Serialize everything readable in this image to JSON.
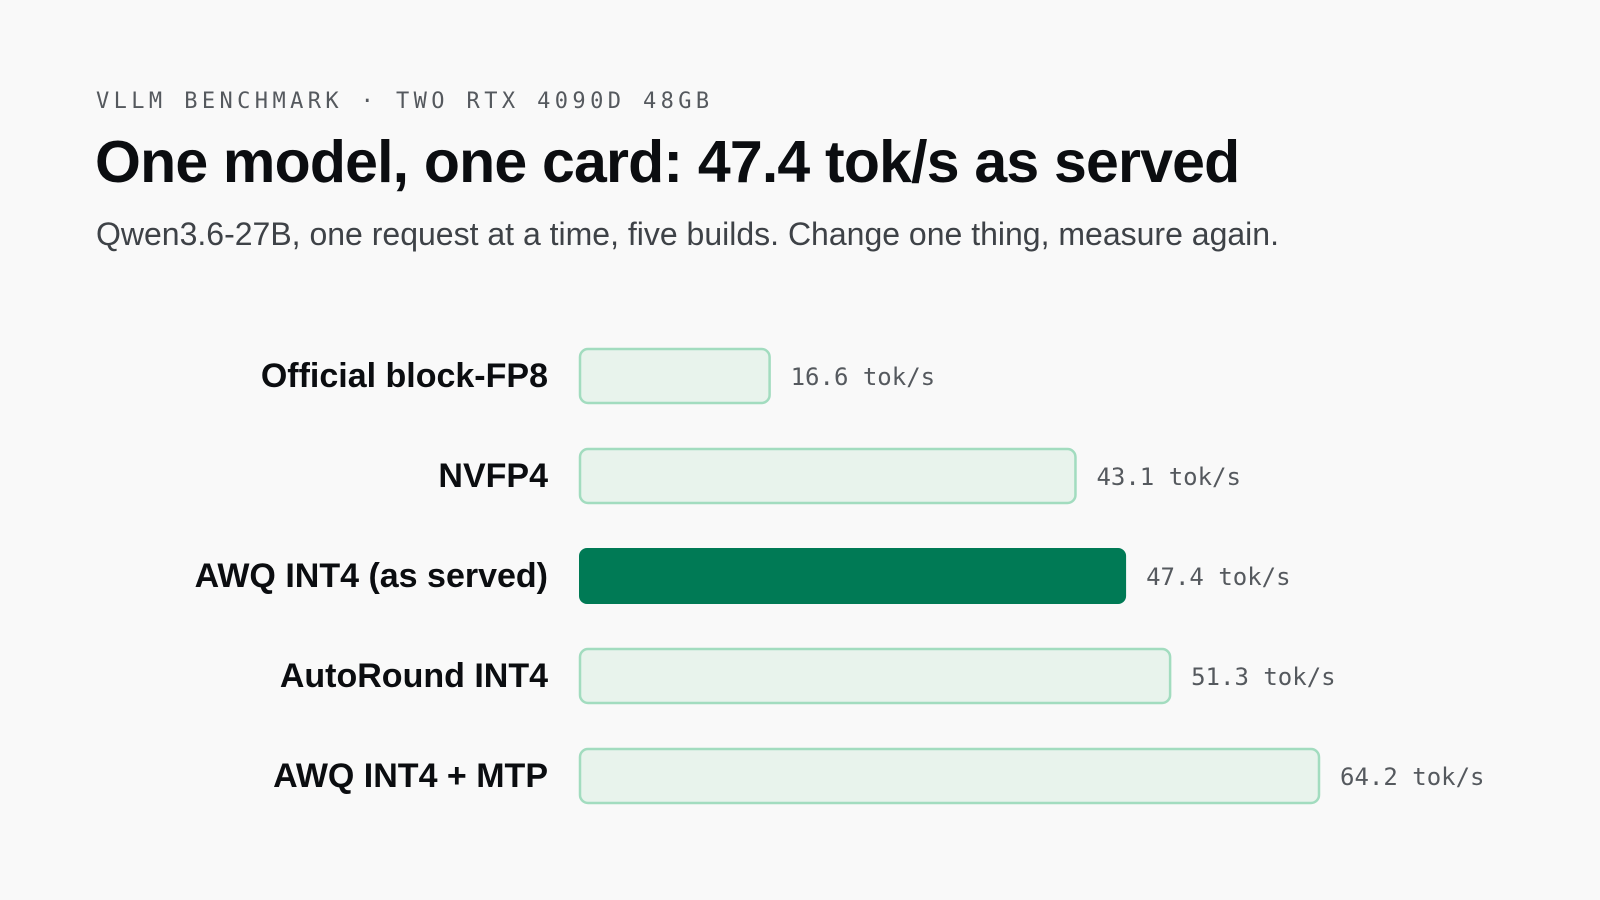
{
  "header": {
    "eyebrow": "VLLM BENCHMARK · TWO RTX 4090D 48GB",
    "title": "One model, one card: 47.4 tok/s as served",
    "subtitle": "Qwen3.6-27B, one request at a time, five builds. Change one thing, measure again."
  },
  "colors": {
    "highlight_fill": "#007a55",
    "bar_fill": "#e8f3ec",
    "bar_stroke": "#a2dcbf",
    "background": "#f9f9f9"
  },
  "chart_data": {
    "type": "bar",
    "orientation": "horizontal",
    "categories": [
      "Official block-FP8",
      "NVFP4",
      "AWQ INT4 (as served)",
      "AutoRound INT4",
      "AWQ INT4 + MTP"
    ],
    "values": [
      16.6,
      43.1,
      47.4,
      51.3,
      64.2
    ],
    "value_labels": [
      "16.6 tok/s",
      "43.1 tok/s",
      "47.4 tok/s",
      "51.3 tok/s",
      "64.2 tok/s"
    ],
    "unit": "tok/s",
    "highlighted": [
      "AWQ INT4 (as served)"
    ],
    "xlim": [
      0,
      64.2
    ],
    "grid": false,
    "legend": "none"
  }
}
